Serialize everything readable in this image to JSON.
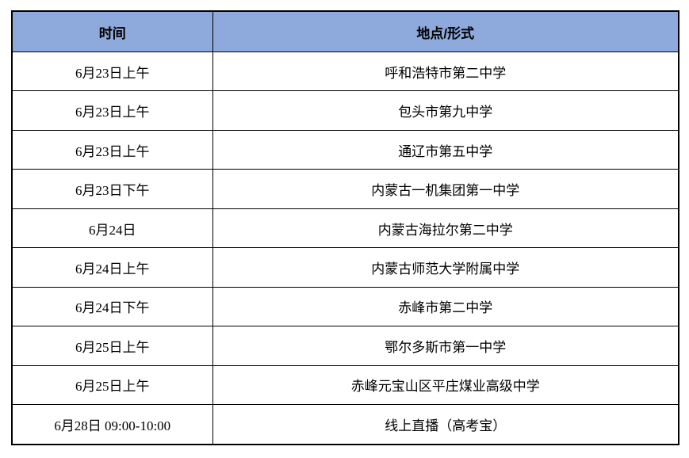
{
  "table": {
    "columns": [
      {
        "id": "time",
        "label": "时间"
      },
      {
        "id": "place",
        "label": "地点/形式"
      }
    ],
    "rows": [
      {
        "time": "6月23日上午",
        "place": "呼和浩特市第二中学"
      },
      {
        "time": "6月23日上午",
        "place": "包头市第九中学"
      },
      {
        "time": "6月23日上午",
        "place": "通辽市第五中学"
      },
      {
        "time": "6月23日下午",
        "place": "内蒙古一机集团第一中学"
      },
      {
        "time": "6月24日",
        "place": "内蒙古海拉尔第二中学"
      },
      {
        "time": "6月24日上午",
        "place": "内蒙古师范大学附属中学"
      },
      {
        "time": "6月24日下午",
        "place": "赤峰市第二中学"
      },
      {
        "time": "6月25日上午",
        "place": "鄂尔多斯市第一中学"
      },
      {
        "time": "6月25日上午",
        "place": "赤峰元宝山区平庄煤业高级中学"
      },
      {
        "time": "6月28日 09:00-10:00",
        "place": "线上直播（高考宝）"
      }
    ],
    "colors": {
      "header_bg": "#8EA9DB",
      "border": "#000000",
      "text": "#000000"
    }
  }
}
